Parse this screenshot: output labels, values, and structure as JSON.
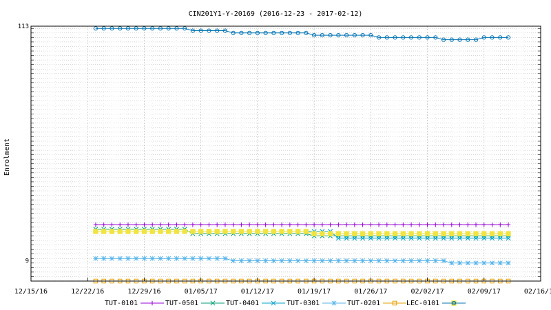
{
  "chart_data": {
    "type": "line",
    "title": "CIN201Y1-Y-20169 (2016-12-23 - 2017-02-12)",
    "xlabel": "",
    "ylabel": "Enrolment",
    "x_tick_labels": [
      "12/15/16",
      "12/22/16",
      "12/29/16",
      "01/05/17",
      "01/12/17",
      "01/19/17",
      "01/26/17",
      "02/02/17",
      "02/09/17",
      "02/16/17"
    ],
    "x_range": [
      "2016-12-15",
      "2017-02-16"
    ],
    "x_start": "2016-12-23",
    "x_end": "2017-02-12",
    "ylim": [
      0,
      113
    ],
    "y_tick_labels": [
      "9",
      "113"
    ],
    "grid": true,
    "legend_position": "bottom",
    "series": [
      {
        "name": "TUT-0101",
        "color": "#9400d3",
        "marker": "plus",
        "segments": [
          {
            "from": "2016-12-23",
            "to": "2017-02-12",
            "value": 25
          }
        ]
      },
      {
        "name": "TUT-0501",
        "color": "#009e73",
        "marker": "x",
        "segments": [
          {
            "from": "2016-12-23",
            "to": "2017-01-03",
            "value": 23
          },
          {
            "from": "2017-01-04",
            "to": "2017-01-18",
            "value": 21
          },
          {
            "from": "2017-01-19",
            "to": "2017-02-12",
            "value": 20
          }
        ]
      },
      {
        "name": "TUT-0401",
        "color": "#00a0c8",
        "marker": "x",
        "segments": [
          {
            "from": "2016-12-23",
            "to": "2017-01-21",
            "value": 22
          },
          {
            "from": "2017-01-22",
            "to": "2017-02-12",
            "value": 19
          }
        ]
      },
      {
        "name": "TUT-0301",
        "color": "#56b4e9",
        "marker": "star",
        "segments": [
          {
            "from": "2016-12-23",
            "to": "2017-01-08",
            "value": 10
          },
          {
            "from": "2017-01-09",
            "to": "2017-02-04",
            "value": 9
          },
          {
            "from": "2017-02-05",
            "to": "2017-02-12",
            "value": 8
          }
        ]
      },
      {
        "name": "TUT-0201",
        "color": "#e69f00",
        "marker": "square-open",
        "segments": [
          {
            "from": "2016-12-23",
            "to": "2017-02-12",
            "value": 0
          }
        ]
      },
      {
        "name": "LEC-0101",
        "color": "#f0e442",
        "marker": "square-filled",
        "segments": [
          {
            "from": "2016-12-23",
            "to": "2017-01-18",
            "value": 22
          },
          {
            "from": "2017-01-19",
            "to": "2017-02-12",
            "value": 21
          }
        ]
      },
      {
        "name": "",
        "color": "#0072b2",
        "marker": "circle-open",
        "segments": [
          {
            "from": "2016-12-23",
            "to": "2017-01-03",
            "value": 112
          },
          {
            "from": "2017-01-04",
            "to": "2017-01-08",
            "value": 111
          },
          {
            "from": "2017-01-09",
            "to": "2017-01-18",
            "value": 110
          },
          {
            "from": "2017-01-19",
            "to": "2017-01-26",
            "value": 109
          },
          {
            "from": "2017-01-27",
            "to": "2017-02-03",
            "value": 108
          },
          {
            "from": "2017-02-04",
            "to": "2017-02-08",
            "value": 107
          },
          {
            "from": "2017-02-09",
            "to": "2017-02-12",
            "value": 108
          }
        ]
      }
    ]
  }
}
